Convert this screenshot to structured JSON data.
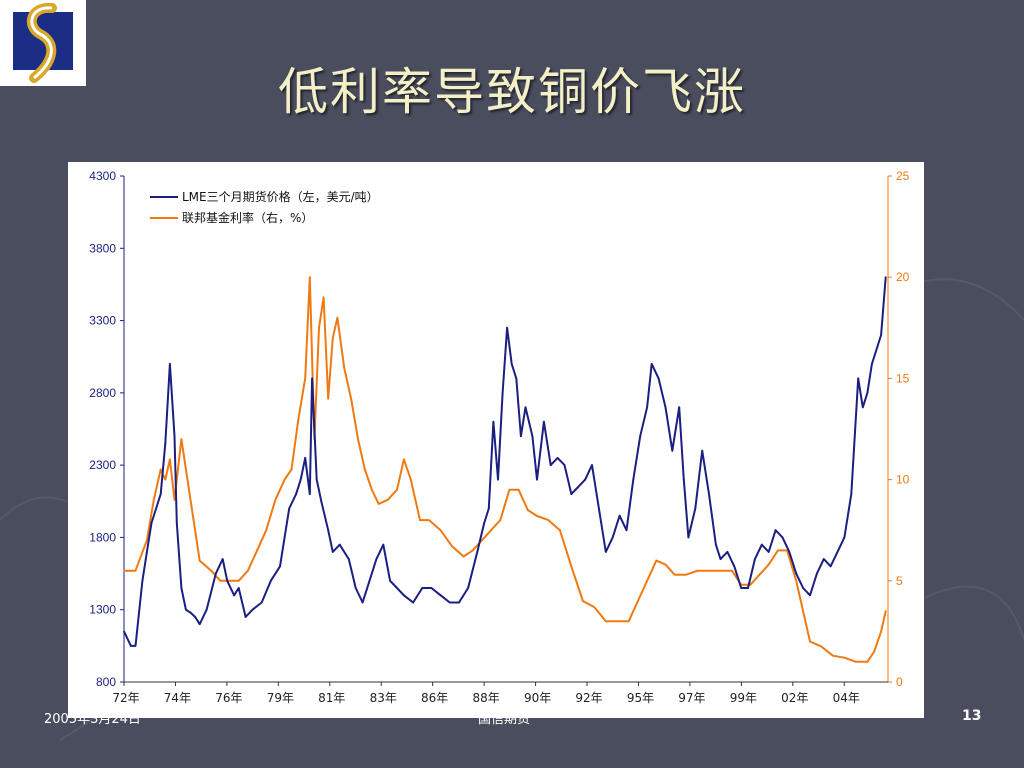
{
  "slide": {
    "title": "低利率导致铜价飞涨",
    "footer_date": "2005年3月24日",
    "footer_center": "国信期货",
    "page_number": "13"
  },
  "colors": {
    "background": "#4a4d5e",
    "title": "#f3efc6",
    "copper_series": "#1a1f80",
    "fed_series": "#f07a12"
  },
  "chart_data": {
    "type": "line",
    "x_ticks": [
      "72年",
      "74年",
      "76年",
      "79年",
      "81年",
      "83年",
      "86年",
      "88年",
      "90年",
      "92年",
      "95年",
      "97年",
      "99年",
      "02年",
      "04年"
    ],
    "x_range": [
      1972.0,
      2005.3
    ],
    "y_left": {
      "ticks": [
        "4300",
        "3800",
        "3300",
        "2800",
        "2300",
        "1800",
        "1300",
        "800"
      ],
      "range": [
        800,
        4300
      ]
    },
    "y_right": {
      "ticks": [
        "25",
        "20",
        "15",
        "10",
        "5",
        "0"
      ],
      "range": [
        0,
        25
      ]
    },
    "grid": false,
    "legend_position": "top-left",
    "series": [
      {
        "name": "LME三个月期货价格（左，美元/吨）",
        "axis": "left",
        "x": [
          1972.0,
          1972.3,
          1972.5,
          1972.8,
          1973.0,
          1973.2,
          1973.4,
          1973.6,
          1973.8,
          1974.0,
          1974.2,
          1974.3,
          1974.5,
          1974.7,
          1974.9,
          1975.1,
          1975.3,
          1975.6,
          1976.0,
          1976.3,
          1976.5,
          1976.8,
          1977.0,
          1977.3,
          1977.6,
          1978.0,
          1978.4,
          1978.8,
          1979.2,
          1979.5,
          1979.7,
          1979.9,
          1980.1,
          1980.2,
          1980.4,
          1980.6,
          1980.9,
          1981.1,
          1981.4,
          1981.8,
          1982.1,
          1982.4,
          1982.7,
          1983.0,
          1983.3,
          1983.6,
          1983.9,
          1984.2,
          1984.6,
          1985.0,
          1985.4,
          1985.8,
          1986.2,
          1986.6,
          1987.0,
          1987.4,
          1987.7,
          1987.9,
          1988.1,
          1988.3,
          1988.5,
          1988.7,
          1988.9,
          1989.1,
          1989.3,
          1989.5,
          1989.8,
          1990.0,
          1990.3,
          1990.6,
          1990.9,
          1991.2,
          1991.5,
          1991.8,
          1992.1,
          1992.4,
          1992.7,
          1993.0,
          1993.3,
          1993.6,
          1993.9,
          1994.2,
          1994.5,
          1994.8,
          1995.0,
          1995.3,
          1995.6,
          1995.9,
          1996.2,
          1996.4,
          1996.6,
          1996.9,
          1997.2,
          1997.5,
          1997.8,
          1998.0,
          1998.3,
          1998.6,
          1998.9,
          1999.2,
          1999.5,
          1999.8,
          2000.1,
          2000.4,
          2000.7,
          2001.0,
          2001.3,
          2001.6,
          2001.9,
          2002.2,
          2002.5,
          2002.8,
          2003.1,
          2003.4,
          2003.7,
          2004.0,
          2004.2,
          2004.4,
          2004.6,
          2004.8,
          2005.0,
          2005.2
        ],
        "y": [
          1150,
          1050,
          1050,
          1500,
          1700,
          1900,
          2000,
          2100,
          2450,
          3000,
          2500,
          1900,
          1450,
          1300,
          1280,
          1250,
          1200,
          1300,
          1550,
          1650,
          1500,
          1400,
          1450,
          1250,
          1300,
          1350,
          1500,
          1600,
          2000,
          2100,
          2200,
          2350,
          2100,
          2900,
          2200,
          2050,
          1850,
          1700,
          1750,
          1650,
          1450,
          1350,
          1500,
          1650,
          1750,
          1500,
          1450,
          1400,
          1350,
          1450,
          1450,
          1400,
          1350,
          1350,
          1450,
          1700,
          1900,
          2000,
          2600,
          2200,
          2800,
          3250,
          3000,
          2900,
          2500,
          2700,
          2500,
          2200,
          2600,
          2300,
          2350,
          2300,
          2100,
          2150,
          2200,
          2300,
          2000,
          1700,
          1800,
          1950,
          1850,
          2200,
          2500,
          2700,
          3000,
          2900,
          2700,
          2400,
          2700,
          2200,
          1800,
          2000,
          2400,
          2100,
          1750,
          1650,
          1700,
          1600,
          1450,
          1450,
          1650,
          1750,
          1700,
          1850,
          1800,
          1700,
          1550,
          1450,
          1400,
          1550,
          1650,
          1600,
          1700,
          1800,
          2100,
          2900,
          2700,
          2800,
          3000,
          3100,
          3200,
          3600
        ]
      },
      {
        "name": "联邦基金利率（右，%）",
        "axis": "right",
        "x": [
          1972.0,
          1972.5,
          1973.0,
          1973.3,
          1973.6,
          1973.8,
          1974.0,
          1974.2,
          1974.5,
          1974.9,
          1975.3,
          1975.8,
          1976.2,
          1976.6,
          1977.0,
          1977.4,
          1977.8,
          1978.2,
          1978.6,
          1979.0,
          1979.3,
          1979.6,
          1979.9,
          1980.1,
          1980.3,
          1980.5,
          1980.7,
          1980.9,
          1981.1,
          1981.3,
          1981.6,
          1981.9,
          1982.2,
          1982.5,
          1982.8,
          1983.1,
          1983.5,
          1983.9,
          1984.2,
          1984.5,
          1984.9,
          1985.3,
          1985.8,
          1986.3,
          1986.8,
          1987.2,
          1987.6,
          1988.0,
          1988.4,
          1988.8,
          1989.2,
          1989.6,
          1990.0,
          1990.5,
          1991.0,
          1991.5,
          1992.0,
          1992.5,
          1993.0,
          1993.5,
          1994.0,
          1994.4,
          1994.8,
          1995.2,
          1995.6,
          1996.0,
          1996.5,
          1997.0,
          1997.5,
          1998.0,
          1998.5,
          1998.9,
          1999.3,
          1999.7,
          2000.1,
          2000.5,
          2000.9,
          2001.3,
          2001.6,
          2001.9,
          2002.4,
          2002.9,
          2003.4,
          2003.9,
          2004.4,
          2004.7,
          2005.0,
          2005.2
        ],
        "y": [
          5.5,
          5.5,
          7,
          9,
          10.5,
          10,
          11,
          9,
          12,
          9,
          6,
          5.5,
          5,
          5,
          5,
          5.5,
          6.5,
          7.5,
          9,
          10,
          10.5,
          13,
          15,
          20,
          12,
          17.5,
          19,
          14,
          17,
          18,
          15.5,
          14,
          12,
          10.5,
          9.5,
          8.8,
          9,
          9.5,
          11,
          10,
          8,
          8,
          7.5,
          6.7,
          6.2,
          6.5,
          7,
          7.5,
          8,
          9.5,
          9.5,
          8.5,
          8.2,
          8,
          7.5,
          5.7,
          4,
          3.7,
          3,
          3,
          3,
          4,
          5,
          6,
          5.8,
          5.3,
          5.3,
          5.5,
          5.5,
          5.5,
          5.5,
          4.8,
          4.8,
          5.3,
          5.8,
          6.5,
          6.5,
          5,
          3.5,
          2,
          1.75,
          1.3,
          1.2,
          1,
          1,
          1.5,
          2.5,
          3.5
        ]
      }
    ]
  }
}
